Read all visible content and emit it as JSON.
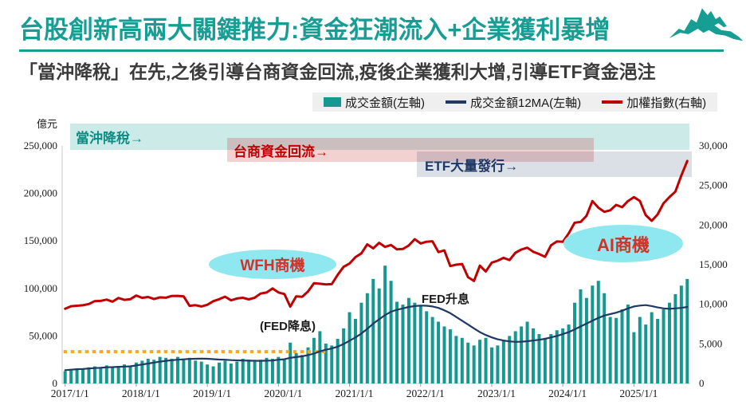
{
  "header": {
    "title": "台股創新高兩大關鍵推力:資金狂潮流入+企業獲利暴增",
    "subtitle": "「當沖降稅」在先,之後引導台商資金回流,疫後企業獲利大增,引導ETF資金浥注",
    "accent_color": "#179E94",
    "logo_icon": "mountain-brush-logo"
  },
  "legend": {
    "items": [
      {
        "label": "成交金額(左軸)",
        "swatch": "bar",
        "color": "#159890"
      },
      {
        "label": "成交金額12MA(左軸)",
        "swatch": "line",
        "color": "#1F3864"
      },
      {
        "label": "加權指數(右軸)",
        "swatch": "line",
        "color": "#C00000"
      }
    ]
  },
  "annotations": {
    "banners": [
      {
        "label": "當沖降稅→",
        "text_color": "#0E8C84",
        "fill": "rgba(23,158,148,0.22)"
      },
      {
        "label": "台商資金回流→",
        "text_color": "#C00000",
        "fill": "rgba(192,0,0,0.18)"
      },
      {
        "label": "ETF大量發行→",
        "text_color": "#1F3864",
        "fill": "rgba(31,56,100,0.16)"
      }
    ],
    "bubbles": [
      {
        "label": "WFH商機",
        "fill": "#8FE8F0",
        "text_color": "#D0332A"
      },
      {
        "label": "AI商機",
        "fill": "#8FE8F0",
        "text_color": "#D0332A"
      }
    ],
    "notes": [
      {
        "label": "(FED降息)"
      },
      {
        "label": "FED升息"
      }
    ]
  },
  "chart_data": {
    "type": "bar",
    "subtype": "combo-bar-line",
    "x_start": "2017/1",
    "x_interval": "month",
    "x_tick_labels": [
      "2017/1/1",
      "2018/1/1",
      "2019/1/1",
      "2020/1/1",
      "2021/1/1",
      "2022/1/1",
      "2023/1/1",
      "2024/1/1",
      "2025/1/1"
    ],
    "left_axis": {
      "unit": "億元",
      "range": [
        0,
        250000
      ],
      "tick_step": 50000
    },
    "right_axis": {
      "range": [
        0,
        30000
      ],
      "tick_step": 5000
    },
    "grid": false,
    "legend_position": "top",
    "series": [
      {
        "name": "成交金額(左軸)",
        "type": "bar",
        "axis": "left",
        "color": "#159890",
        "values": [
          13000,
          15000,
          16000,
          15000,
          17000,
          18000,
          17000,
          19000,
          18000,
          17000,
          20000,
          18000,
          22000,
          24000,
          26000,
          25000,
          28000,
          27000,
          26000,
          28000,
          25000,
          27000,
          24000,
          23000,
          20000,
          18000,
          22000,
          24000,
          21000,
          23000,
          26000,
          25000,
          23000,
          25000,
          27000,
          26000,
          28000,
          26000,
          43000,
          32000,
          30000,
          38000,
          48000,
          55000,
          42000,
          40000,
          47000,
          58000,
          75000,
          68000,
          85000,
          95000,
          110000,
          100000,
          124000,
          108000,
          86000,
          83000,
          90000,
          85000,
          82000,
          76000,
          70000,
          65000,
          60000,
          57000,
          50000,
          48000,
          43000,
          40000,
          46000,
          48000,
          38000,
          40000,
          45000,
          50000,
          55000,
          60000,
          65000,
          58000,
          52000,
          48000,
          52000,
          56000,
          58000,
          62000,
          85000,
          99000,
          90000,
          103000,
          108000,
          95000,
          70000,
          69000,
          78000,
          83000,
          54000,
          70000,
          62000,
          75000,
          68000,
          78000,
          85000,
          94000,
          103000,
          110000
        ]
      },
      {
        "name": "成交金額12MA(左軸)",
        "type": "line",
        "axis": "left",
        "color": "#1F3864",
        "values": [
          14000,
          14500,
          15000,
          15300,
          15800,
          16200,
          16500,
          17000,
          17200,
          17500,
          17800,
          18000,
          19000,
          20000,
          21000,
          22000,
          23000,
          23800,
          24500,
          25000,
          25400,
          25800,
          26000,
          26200,
          26000,
          25600,
          25200,
          25000,
          24600,
          24300,
          24200,
          24000,
          23900,
          23800,
          24000,
          24200,
          25000,
          25500,
          27000,
          27800,
          28600,
          29800,
          31500,
          33800,
          35500,
          36800,
          38800,
          41500,
          45000,
          48500,
          52500,
          57500,
          63000,
          67500,
          72000,
          75500,
          77500,
          79000,
          80500,
          81500,
          82000,
          81800,
          81000,
          79500,
          77000,
          74000,
          70000,
          66000,
          62000,
          58000,
          54000,
          51000,
          48500,
          46500,
          45200,
          44300,
          43800,
          44000,
          44500,
          45200,
          46000,
          47000,
          48500,
          50000,
          52000,
          54000,
          57000,
          60000,
          63000,
          66000,
          69000,
          71500,
          73000,
          74500,
          76500,
          79000,
          81000,
          82000,
          82500,
          81500,
          80000,
          79000,
          78500,
          79000,
          79500,
          80500
        ]
      },
      {
        "name": "加權指數(右軸)",
        "type": "line",
        "axis": "right",
        "color": "#C00000",
        "values": [
          9447,
          9750,
          9812,
          9872,
          10041,
          10395,
          10427,
          10586,
          10330,
          10794,
          10560,
          10643,
          11104,
          10815,
          10919,
          10658,
          10875,
          10837,
          11057,
          11064,
          11006,
          9802,
          9888,
          9727,
          9932,
          10389,
          10641,
          10968,
          10498,
          10731,
          10824,
          10618,
          10829,
          11359,
          11490,
          11997,
          11495,
          11292,
          9708,
          10992,
          10942,
          11621,
          12665,
          12591,
          12515,
          12546,
          13723,
          14733,
          15138,
          15953,
          16431,
          17566,
          17068,
          17755,
          17247,
          17490,
          16935,
          16987,
          17428,
          18218,
          17674,
          17898,
          17963,
          16592,
          16807,
          14825,
          15000,
          15095,
          13425,
          12950,
          14880,
          14138,
          15265,
          15503,
          15868,
          15579,
          16512,
          16916,
          17145,
          16635,
          16353,
          16001,
          17433,
          17930,
          17889,
          18966,
          20294,
          20396,
          21174,
          23032,
          22199,
          21675,
          21866,
          22553,
          22262,
          23035,
          23525,
          23053,
          21252,
          20532,
          21347,
          22756,
          23542,
          24233,
          26247,
          28100
        ]
      }
    ],
    "reference_line": {
      "description": "orange dotted horizontal guide",
      "color": "#FFA520",
      "style": "dotted",
      "axis": "left",
      "value": 33500,
      "x_start_month_index": 0,
      "x_end_month_index": 44
    }
  }
}
